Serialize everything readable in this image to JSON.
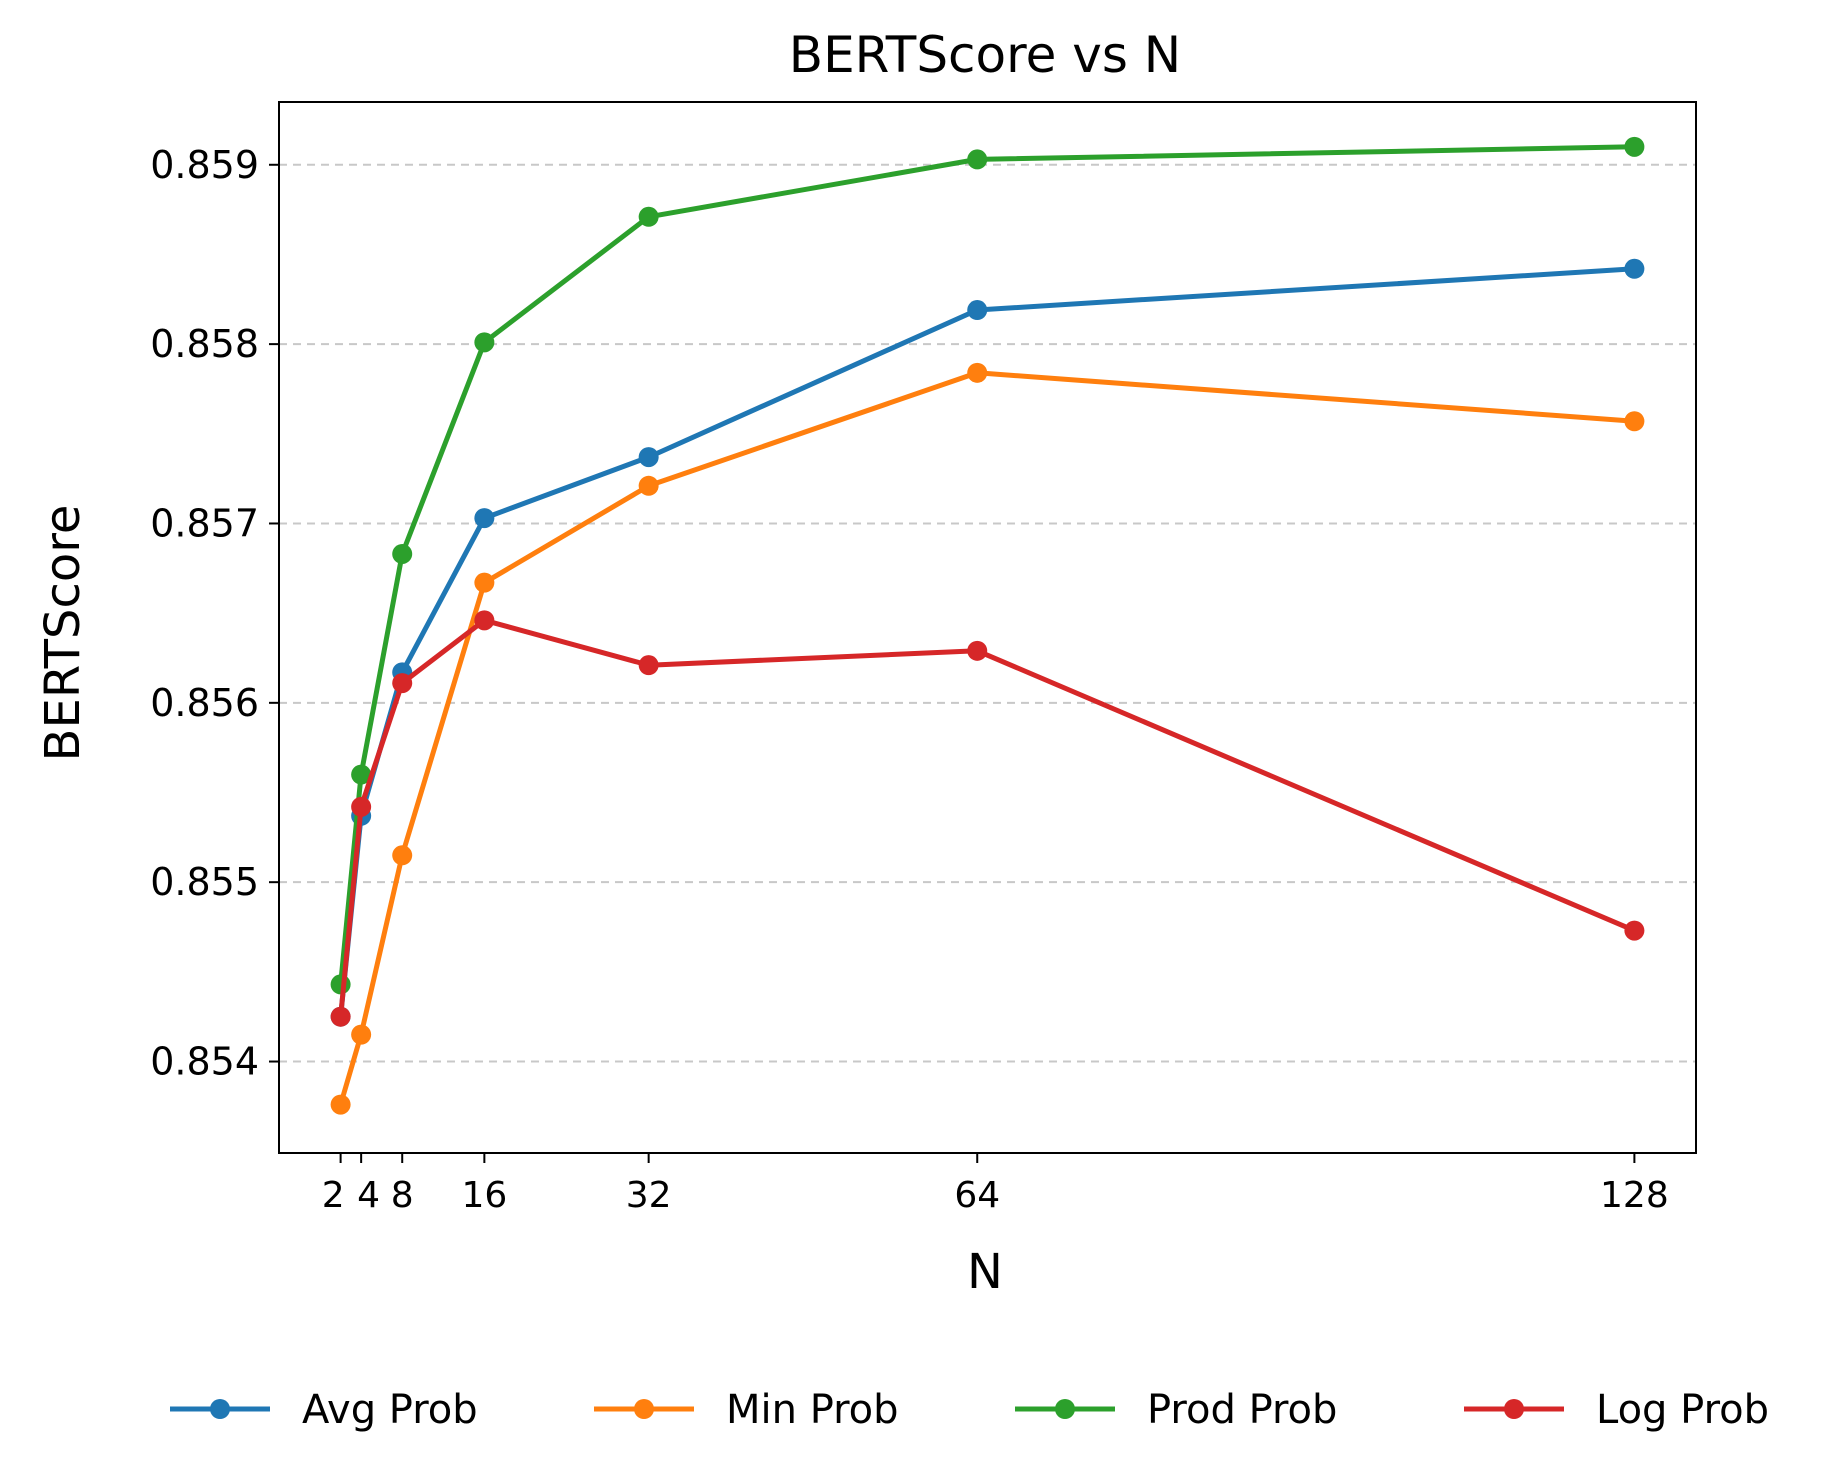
{
  "chart_data": {
    "type": "line",
    "title": "BERTScore vs N",
    "xlabel": "N",
    "ylabel": "BERTScore",
    "x": [
      2,
      4,
      8,
      16,
      32,
      64,
      128
    ],
    "x_ticks": [
      "2",
      "4",
      "8",
      "16",
      "32",
      "64",
      "128"
    ],
    "xlim": [
      -4,
      134
    ],
    "y_ticks": [
      "0.854",
      "0.855",
      "0.856",
      "0.857",
      "0.858",
      "0.859"
    ],
    "ylim": [
      0.85349,
      0.85935
    ],
    "grid": "y-dashed",
    "legend_position": "bottom",
    "series": [
      {
        "name": "Avg Prob",
        "color": "#1f77b4",
        "values": [
          0.85425,
          0.85537,
          0.85617,
          0.85703,
          0.85737,
          0.85819,
          0.85842
        ]
      },
      {
        "name": "Min Prob",
        "color": "#ff7f0e",
        "values": [
          0.85376,
          0.85415,
          0.85515,
          0.85667,
          0.85721,
          0.85784,
          0.85757
        ]
      },
      {
        "name": "Prod Prob",
        "color": "#2ca02c",
        "values": [
          0.85443,
          0.8556,
          0.85683,
          0.85801,
          0.85871,
          0.85903,
          0.8591
        ]
      },
      {
        "name": "Log Prob",
        "color": "#d62728",
        "values": [
          0.85425,
          0.85542,
          0.85611,
          0.85646,
          0.85621,
          0.85629,
          0.85473
        ]
      }
    ]
  }
}
